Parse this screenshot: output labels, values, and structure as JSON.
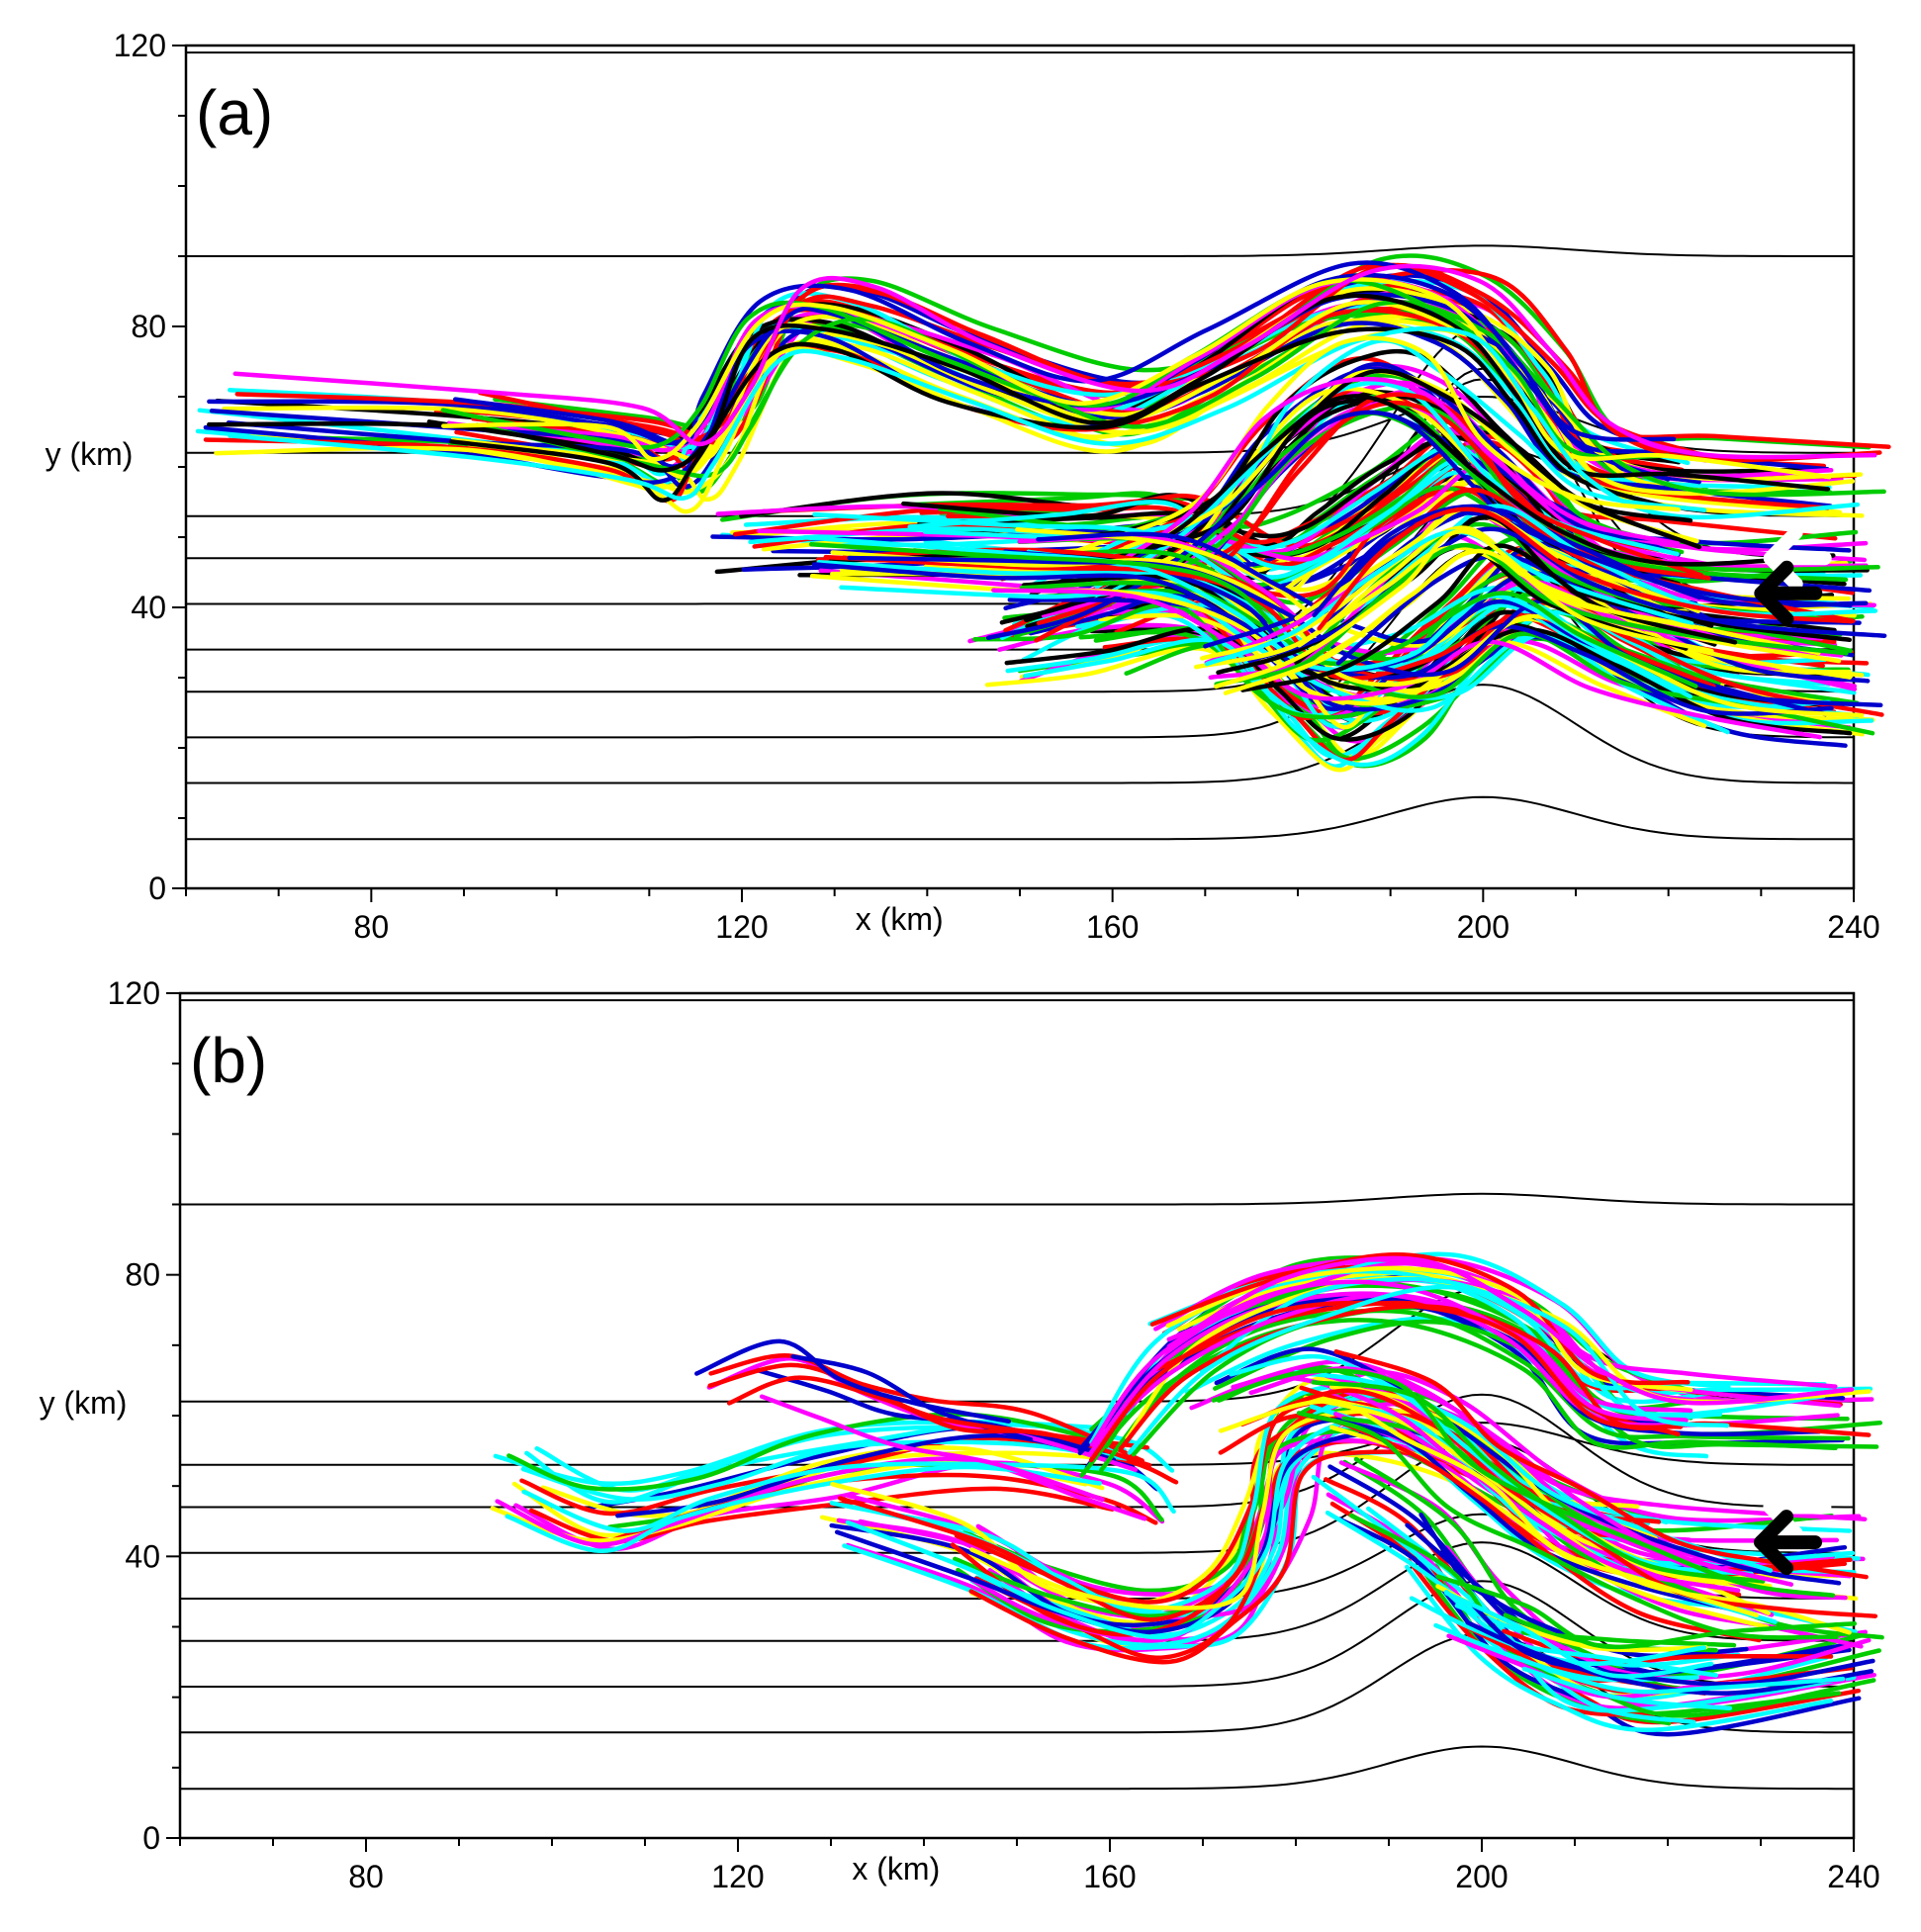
{
  "chart_data": [
    {
      "panel_label": "(a)",
      "type": "line",
      "xlabel": "x (km)",
      "ylabel": "y (km)",
      "xlim": [
        60,
        240
      ],
      "ylim": [
        0,
        120
      ],
      "xticks": [
        80,
        120,
        160,
        200,
        240
      ],
      "yticks": [
        0,
        40,
        80,
        120
      ],
      "grid": false,
      "contour_color": "#000000",
      "contour_levels": [
        7,
        15,
        21.5,
        28,
        34,
        40.5,
        47,
        53,
        62,
        90
      ],
      "topography_bump": {
        "center_x": 200,
        "half_width": 14,
        "extra_height": [
          6,
          14,
          27,
          29,
          40,
          32,
          33,
          10,
          8,
          1.5
        ]
      },
      "trajectory_colors": [
        "#0000cc",
        "#ff0000",
        "#00cc00",
        "#00ffff",
        "#ff00ff",
        "#ffff00",
        "#000000"
      ],
      "arrows": [
        {
          "name": "white",
          "color": "#ffffff",
          "x": 231,
          "y": 47
        },
        {
          "name": "black",
          "color": "#000000",
          "x": 230,
          "y": 42
        }
      ]
    },
    {
      "panel_label": "(b)",
      "type": "line",
      "xlabel": "x (km)",
      "ylabel": "y (km)",
      "xlim": [
        60,
        240
      ],
      "ylim": [
        0,
        120
      ],
      "xticks": [
        80,
        120,
        160,
        200,
        240
      ],
      "yticks": [
        0,
        40,
        80,
        120
      ],
      "grid": false,
      "contour_color": "#000000",
      "contour_levels": [
        7,
        15,
        21.5,
        28,
        34,
        40.5,
        47,
        53,
        62,
        90
      ],
      "topography_bump": {
        "center_x": 200,
        "half_width": 14,
        "extra_height": [
          6,
          14,
          15,
          14,
          12,
          16,
          16,
          6,
          16,
          1.5
        ]
      },
      "trajectory_colors": [
        "#0000cc",
        "#ff0000",
        "#00cc00",
        "#00ffff",
        "#ff00ff",
        "#ffff00"
      ],
      "arrows": [
        {
          "name": "white",
          "color": "#ffffff",
          "x": 231,
          "y": 47
        },
        {
          "name": "black",
          "color": "#000000",
          "x": 230,
          "y": 42
        }
      ]
    }
  ]
}
